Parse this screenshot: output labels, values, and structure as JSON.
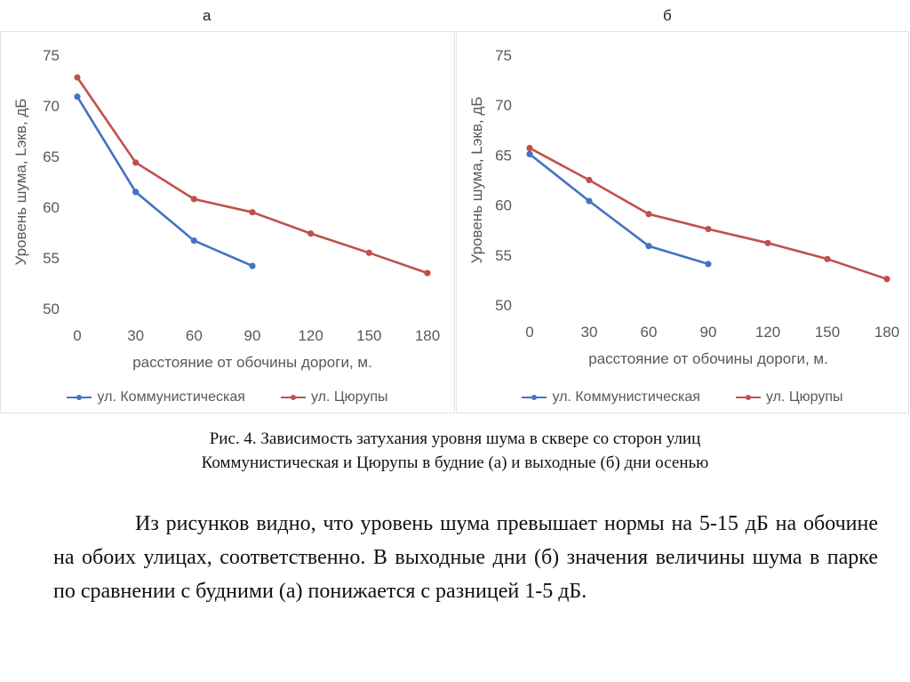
{
  "chart_data": [
    {
      "type": "line",
      "panel_label": "а",
      "title": "",
      "xlabel": "расстояние от обочины дороги, м.",
      "ylabel": "Уровень шума, Lэкв, дБ",
      "x": [
        0,
        30,
        60,
        90,
        120,
        150,
        180
      ],
      "x_ticks": [
        "0",
        "30",
        "60",
        "90",
        "120",
        "150",
        "180"
      ],
      "ylim": [
        50,
        75
      ],
      "y_ticks": [
        "50",
        "55",
        "60",
        "65",
        "70",
        "75"
      ],
      "legend_position": "bottom",
      "series": [
        {
          "name": "ул. Коммунистическая",
          "color": "#4472C4",
          "x": [
            0,
            30,
            60,
            90
          ],
          "values": [
            70.9,
            61.5,
            56.7,
            54.2
          ]
        },
        {
          "name": "ул. Цюрупы",
          "color": "#C0504D",
          "x": [
            0,
            30,
            60,
            90,
            120,
            150,
            180
          ],
          "values": [
            72.8,
            64.4,
            60.8,
            59.5,
            57.4,
            55.5,
            53.5
          ]
        }
      ]
    },
    {
      "type": "line",
      "panel_label": "б",
      "title": "",
      "xlabel": "расстояние от обочины дороги, м.",
      "ylabel": "Уровень шума, Lэкв, дБ",
      "x": [
        0,
        30,
        60,
        90,
        120,
        150,
        180
      ],
      "x_ticks": [
        "0",
        "30",
        "60",
        "90",
        "120",
        "150",
        "180"
      ],
      "ylim": [
        50,
        75
      ],
      "y_ticks": [
        "50",
        "55",
        "60",
        "65",
        "70",
        "75"
      ],
      "legend_position": "bottom",
      "series": [
        {
          "name": "ул. Коммунистическая",
          "color": "#4472C4",
          "x": [
            0,
            30,
            60,
            90
          ],
          "values": [
            65.1,
            60.4,
            55.9,
            54.1
          ]
        },
        {
          "name": "ул. Цюрупы",
          "color": "#C0504D",
          "x": [
            0,
            30,
            60,
            90,
            120,
            150,
            180
          ],
          "values": [
            65.7,
            62.5,
            59.1,
            57.6,
            56.2,
            54.6,
            52.6
          ]
        }
      ]
    }
  ],
  "caption": {
    "line1": "Рис. 4. Зависимость затухания уровня шума в сквере со сторон улиц",
    "line2": "Коммунистическая и Цюрупы в будние (а) и выходные (б) дни осенью"
  },
  "paragraph": "Из рисунков видно, что уровень шума превышает нормы на 5-15 дБ на обочине на обоих улицах, соответственно. В выходные дни (б) значения величины шума в парке по сравнении с будними (а) понижается с разницей 1-5 дБ."
}
